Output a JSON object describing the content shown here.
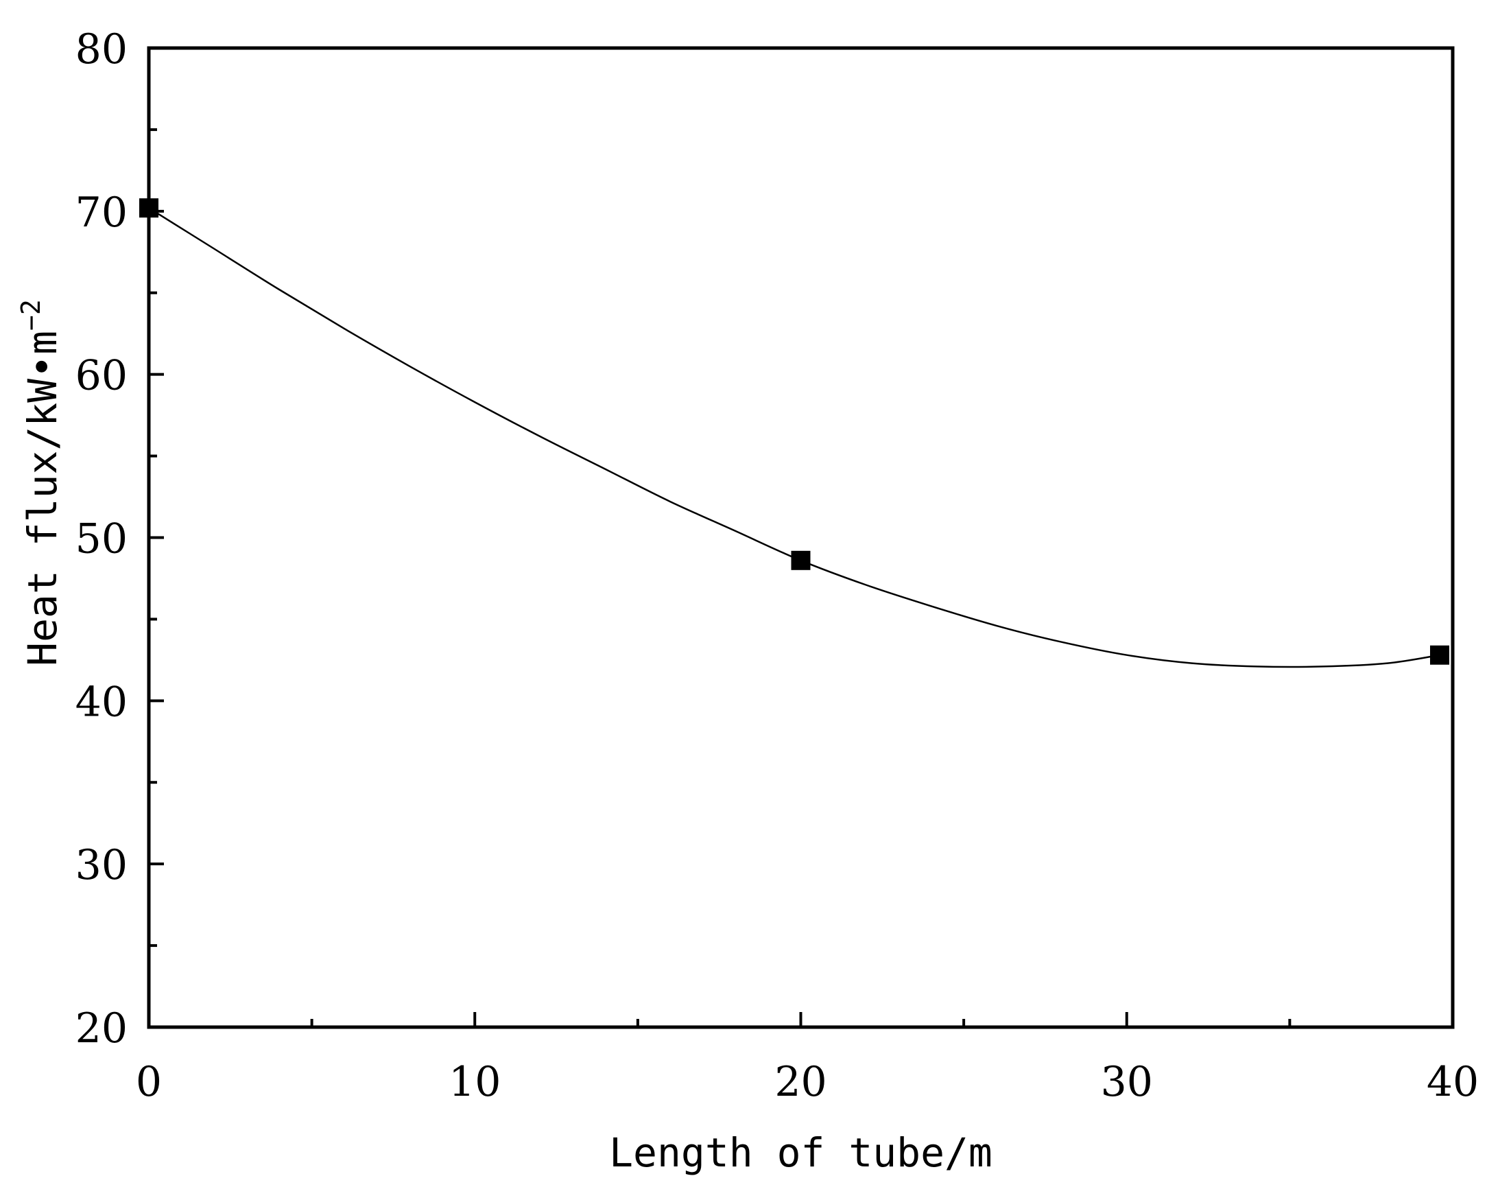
{
  "chart_data": {
    "type": "line",
    "title": "",
    "xlabel": "Length of tube/m",
    "ylabel": {
      "main": "Heat flux/kW•m",
      "superscript": "−2"
    },
    "xlim": [
      0,
      40
    ],
    "ylim": [
      20,
      80
    ],
    "x_ticks": [
      0,
      10,
      20,
      30,
      40
    ],
    "x_tick_labels": [
      "0",
      "10",
      "20",
      "30",
      "40"
    ],
    "y_ticks": [
      20,
      30,
      40,
      50,
      60,
      70,
      80
    ],
    "y_tick_labels": [
      "20",
      "30",
      "40",
      "50",
      "60",
      "70",
      "80"
    ],
    "x_minor_ticks": [
      5,
      15,
      25,
      35
    ],
    "y_minor_ticks": [
      25,
      35,
      45,
      55,
      65,
      75
    ],
    "grid": false,
    "legend": "none",
    "series": [
      {
        "marker": "square",
        "color": "#000000",
        "points": [
          {
            "x": 0,
            "y": 70.2
          },
          {
            "x": 20,
            "y": 48.6
          },
          {
            "x": 39.6,
            "y": 42.8
          }
        ],
        "curve": [
          {
            "x": 0,
            "y": 70.2
          },
          {
            "x": 2,
            "y": 67.7
          },
          {
            "x": 4,
            "y": 65.2
          },
          {
            "x": 6,
            "y": 62.8
          },
          {
            "x": 8,
            "y": 60.5
          },
          {
            "x": 10,
            "y": 58.3
          },
          {
            "x": 12,
            "y": 56.2
          },
          {
            "x": 14,
            "y": 54.2
          },
          {
            "x": 16,
            "y": 52.2
          },
          {
            "x": 18,
            "y": 50.4
          },
          {
            "x": 20,
            "y": 48.6
          },
          {
            "x": 22,
            "y": 47.1
          },
          {
            "x": 24,
            "y": 45.8
          },
          {
            "x": 26,
            "y": 44.6
          },
          {
            "x": 28,
            "y": 43.6
          },
          {
            "x": 30,
            "y": 42.8
          },
          {
            "x": 32,
            "y": 42.3
          },
          {
            "x": 34,
            "y": 42.1
          },
          {
            "x": 36,
            "y": 42.1
          },
          {
            "x": 38,
            "y": 42.3
          },
          {
            "x": 39.6,
            "y": 42.8
          }
        ]
      }
    ]
  }
}
